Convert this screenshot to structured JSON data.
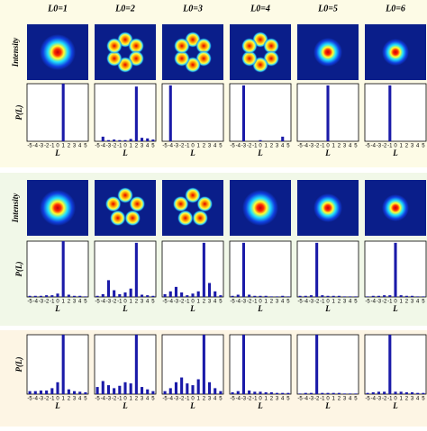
{
  "column_titles": [
    "L0=1",
    "L0=2",
    "L0=3",
    "L0=4",
    "L0=5",
    "L0=6"
  ],
  "intensity_label": "Intensity",
  "chart_data": [
    {
      "type": "bar",
      "categories": [
        "-5",
        "-4",
        "-3",
        "-2",
        "-1",
        "0",
        "1",
        "2",
        "3",
        "4",
        "5"
      ],
      "values": [
        0,
        0,
        0,
        0,
        0,
        0,
        1,
        0,
        0,
        0,
        0
      ],
      "color": "#1a1aa8",
      "ylim": [
        0,
        1
      ],
      "xlabel": "L",
      "ylabel": "P(L)"
    },
    {
      "type": "bar",
      "categories": [
        "-5",
        "-4",
        "-3",
        "-2",
        "-1",
        "0",
        "1",
        "2",
        "3",
        "4",
        "5"
      ],
      "values": [
        0,
        0.08,
        0.02,
        0.03,
        0.02,
        0.02,
        0.04,
        0.95,
        0.06,
        0.05,
        0.03
      ],
      "color": "#1a1aa8",
      "ylim": [
        0,
        1
      ],
      "xlabel": "L"
    },
    {
      "type": "bar",
      "categories": [
        "-5",
        "-4",
        "-3",
        "-2",
        "-1",
        "0",
        "1",
        "2",
        "3",
        "4",
        "5"
      ],
      "values": [
        0,
        0.97,
        0,
        0,
        0,
        0,
        0,
        0,
        0,
        0,
        0
      ],
      "color": "#1a1aa8",
      "ylim": [
        0,
        1
      ],
      "xlabel": "L"
    },
    {
      "type": "bar",
      "categories": [
        "-5",
        "-4",
        "-3",
        "-2",
        "-1",
        "0",
        "1",
        "2",
        "3",
        "4",
        "5"
      ],
      "values": [
        0,
        0,
        0.97,
        0,
        0,
        0.02,
        0,
        0,
        0,
        0.08,
        0
      ],
      "color": "#1a1aa8",
      "ylim": [
        0,
        1
      ],
      "xlabel": "L"
    },
    {
      "type": "bar",
      "categories": [
        "-5",
        "-4",
        "-3",
        "-2",
        "-1",
        "0",
        "1",
        "2",
        "3",
        "4",
        "5"
      ],
      "values": [
        0,
        0,
        0,
        0,
        0,
        0.97,
        0,
        0,
        0,
        0,
        0
      ],
      "color": "#1a1aa8",
      "ylim": [
        0,
        1
      ],
      "xlabel": "L"
    },
    {
      "type": "bar",
      "categories": [
        "-5",
        "-4",
        "-3",
        "-2",
        "-1",
        "0",
        "1",
        "2",
        "3",
        "4",
        "5"
      ],
      "values": [
        0,
        0,
        0,
        0,
        0.97,
        0,
        0,
        0,
        0,
        0,
        0
      ],
      "color": "#1a1aa8",
      "ylim": [
        0,
        1
      ],
      "xlabel": "L"
    },
    {
      "type": "bar",
      "categories": [
        "-5",
        "-4",
        "-3",
        "-2",
        "-1",
        "0",
        "1",
        "2",
        "3",
        "4",
        "5"
      ],
      "values": [
        0.02,
        0.02,
        0.02,
        0.03,
        0.03,
        0.06,
        1,
        0.04,
        0.02,
        0.02,
        0.01
      ],
      "color": "#1a1aa8",
      "ylim": [
        0,
        1
      ],
      "xlabel": "L",
      "ylabel": "P(L)"
    },
    {
      "type": "bar",
      "categories": [
        "-5",
        "-4",
        "-3",
        "-2",
        "-1",
        "0",
        "1",
        "2",
        "3",
        "4",
        "5"
      ],
      "values": [
        0.02,
        0.05,
        0.3,
        0.12,
        0.05,
        0.08,
        0.15,
        0.97,
        0.04,
        0.03,
        0.02
      ],
      "color": "#1a1aa8",
      "ylim": [
        0,
        1
      ],
      "xlabel": "L"
    },
    {
      "type": "bar",
      "categories": [
        "-5",
        "-4",
        "-3",
        "-2",
        "-1",
        "0",
        "1",
        "2",
        "3",
        "4",
        "5"
      ],
      "values": [
        0.05,
        0.1,
        0.18,
        0.08,
        0.03,
        0.06,
        0.1,
        0.97,
        0.25,
        0.1,
        0.03
      ],
      "color": "#1a1aa8",
      "ylim": [
        0,
        1
      ],
      "xlabel": "L"
    },
    {
      "type": "bar",
      "categories": [
        "-5",
        "-4",
        "-3",
        "-2",
        "-1",
        "0",
        "1",
        "2",
        "3",
        "4",
        "5"
      ],
      "values": [
        0.02,
        0.04,
        0.97,
        0.04,
        0.02,
        0.02,
        0.02,
        0.01,
        0.01,
        0.02,
        0.01
      ],
      "color": "#1a1aa8",
      "ylim": [
        0,
        1
      ],
      "xlabel": "L"
    },
    {
      "type": "bar",
      "categories": [
        "-5",
        "-4",
        "-3",
        "-2",
        "-1",
        "0",
        "1",
        "2",
        "3",
        "4",
        "5"
      ],
      "values": [
        0.02,
        0.02,
        0.03,
        0.97,
        0.03,
        0.02,
        0.02,
        0.02,
        0.01,
        0.01,
        0.01
      ],
      "color": "#1a1aa8",
      "ylim": [
        0,
        1
      ],
      "xlabel": "L"
    },
    {
      "type": "bar",
      "categories": [
        "-5",
        "-4",
        "-3",
        "-2",
        "-1",
        "0",
        "1",
        "2",
        "3",
        "4",
        "5"
      ],
      "values": [
        0.01,
        0.02,
        0.02,
        0.03,
        0.03,
        0.97,
        0.03,
        0.02,
        0.02,
        0.01,
        0.01
      ],
      "color": "#1a1aa8",
      "ylim": [
        0,
        1
      ],
      "xlabel": "L"
    },
    {
      "type": "bar",
      "categories": [
        "-5",
        "-4",
        "-3",
        "-2",
        "-1",
        "0",
        "1",
        "2",
        "3",
        "4",
        "5"
      ],
      "values": [
        0.05,
        0.05,
        0.06,
        0.06,
        0.1,
        0.2,
        1,
        0.08,
        0.05,
        0.04,
        0.03
      ],
      "color": "#1a1aa8",
      "ylim": [
        0,
        1
      ],
      "xlabel": "L",
      "ylabel": "P(L)"
    },
    {
      "type": "bar",
      "categories": [
        "-5",
        "-4",
        "-3",
        "-2",
        "-1",
        "0",
        "1",
        "2",
        "3",
        "4",
        "5"
      ],
      "values": [
        0.12,
        0.22,
        0.15,
        0.1,
        0.14,
        0.2,
        0.18,
        1,
        0.12,
        0.08,
        0.05
      ],
      "color": "#1a1aa8",
      "ylim": [
        0,
        1
      ],
      "xlabel": "L"
    },
    {
      "type": "bar",
      "categories": [
        "-5",
        "-4",
        "-3",
        "-2",
        "-1",
        "0",
        "1",
        "2",
        "3",
        "4",
        "5"
      ],
      "values": [
        0.05,
        0.1,
        0.2,
        0.28,
        0.18,
        0.15,
        0.25,
        1,
        0.2,
        0.1,
        0.05
      ],
      "color": "#1a1aa8",
      "ylim": [
        0,
        1
      ],
      "xlabel": "L"
    },
    {
      "type": "bar",
      "categories": [
        "-5",
        "-4",
        "-3",
        "-2",
        "-1",
        "0",
        "1",
        "2",
        "3",
        "4",
        "5"
      ],
      "values": [
        0.03,
        0.05,
        1,
        0.06,
        0.04,
        0.04,
        0.03,
        0.03,
        0.02,
        0.02,
        0.02
      ],
      "color": "#1a1aa8",
      "ylim": [
        0,
        1
      ],
      "xlabel": "L"
    },
    {
      "type": "bar",
      "categories": [
        "-5",
        "-4",
        "-3",
        "-2",
        "-1",
        "0",
        "1",
        "2",
        "3",
        "4",
        "5"
      ],
      "values": [
        0.01,
        0.02,
        0.02,
        1,
        0.02,
        0.02,
        0.02,
        0.02,
        0.01,
        0.01,
        0.01
      ],
      "color": "#1a1aa8",
      "ylim": [
        0,
        1
      ],
      "xlabel": "L"
    },
    {
      "type": "bar",
      "categories": [
        "-5",
        "-4",
        "-3",
        "-2",
        "-1",
        "0",
        "1",
        "2",
        "3",
        "4",
        "5"
      ],
      "values": [
        0.02,
        0.03,
        0.04,
        0.04,
        1,
        0.04,
        0.04,
        0.03,
        0.03,
        0.02,
        0.02
      ],
      "color": "#1a1aa8",
      "ylim": [
        0,
        1
      ],
      "xlabel": "L"
    }
  ]
}
